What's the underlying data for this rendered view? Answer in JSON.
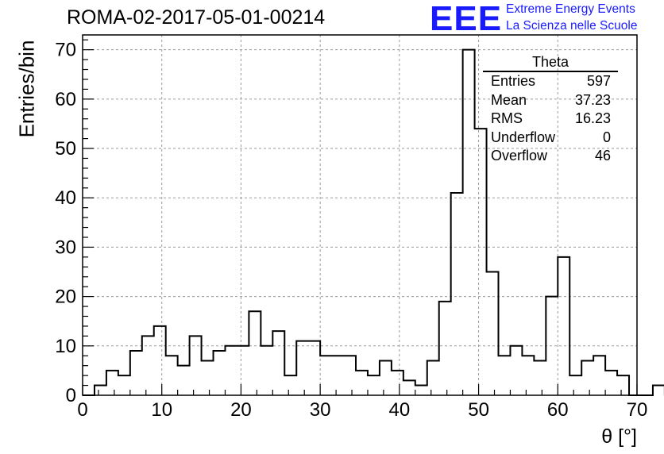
{
  "run_title": "ROMA-02-2017-05-01-00214",
  "logo": {
    "mark": "EEE",
    "line1": "Extreme Energy Events",
    "line2": "La Scienza nelle Scuole",
    "color": "#1a1aff"
  },
  "stats": {
    "title": "Theta",
    "rows": [
      {
        "label": "Entries",
        "value": "597"
      },
      {
        "label": "Mean",
        "value": "37.23"
      },
      {
        "label": "RMS",
        "value": "16.23"
      },
      {
        "label": "Underflow",
        "value": "0"
      },
      {
        "label": "Overflow",
        "value": "46"
      }
    ]
  },
  "chart_data": {
    "type": "bar",
    "title": "ROMA-02-2017-05-01-00214",
    "xlabel": "θ [°]",
    "ylabel": "Entries/bin",
    "xlim": [
      0,
      70
    ],
    "ylim": [
      0,
      73
    ],
    "xticks": [
      0,
      10,
      20,
      30,
      40,
      50,
      60,
      70
    ],
    "yticks": [
      0,
      10,
      20,
      30,
      40,
      50,
      60,
      70
    ],
    "grid": true,
    "bin_width": 1.5,
    "bin_edges_start": 0,
    "values": [
      0,
      2,
      5,
      4,
      9,
      12,
      14,
      8,
      6,
      12,
      7,
      9,
      10,
      10,
      17,
      10,
      13,
      4,
      11,
      11,
      8,
      8,
      8,
      5,
      4,
      7,
      5,
      3,
      2,
      7,
      19,
      41,
      70,
      54,
      25,
      8,
      10,
      8,
      7,
      20,
      28,
      4,
      7,
      8,
      5,
      4,
      0,
      0,
      2,
      0
    ]
  }
}
